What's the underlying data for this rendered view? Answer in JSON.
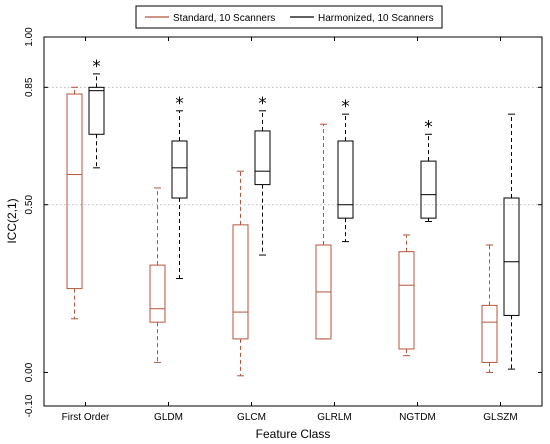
{
  "chart_data": {
    "type": "boxplot",
    "xlabel": "Feature Class",
    "ylabel": "ICC(2,1)",
    "ylim": [
      -0.1,
      1.0
    ],
    "yticks": [
      -0.1,
      0.0,
      0.5,
      0.85,
      1.0
    ],
    "ytick_labels": [
      "-0.10",
      "0.00",
      "0.50",
      "0.85",
      "1.00"
    ],
    "grid": "dotted horizontal at 0.50 and 0.85",
    "legend_position": "top-center",
    "categories": [
      "First Order",
      "GLDM",
      "GLCM",
      "GLRLM",
      "NGTDM",
      "GLSZM"
    ],
    "series": [
      {
        "name": "Standard, 10 Scanners",
        "color": "#b5553b",
        "boxes": [
          {
            "whisker_low": 0.16,
            "q1": 0.25,
            "median": 0.59,
            "q3": 0.83,
            "whisker_high": 0.85
          },
          {
            "whisker_low": 0.03,
            "q1": 0.15,
            "median": 0.19,
            "q3": 0.32,
            "whisker_high": 0.55
          },
          {
            "whisker_low": -0.01,
            "q1": 0.1,
            "median": 0.18,
            "q3": 0.44,
            "whisker_high": 0.6
          },
          {
            "whisker_low": 0.1,
            "q1": 0.1,
            "median": 0.24,
            "q3": 0.38,
            "whisker_high": 0.74
          },
          {
            "whisker_low": 0.05,
            "q1": 0.07,
            "median": 0.26,
            "q3": 0.36,
            "whisker_high": 0.41
          },
          {
            "whisker_low": 0.0,
            "q1": 0.03,
            "median": 0.15,
            "q3": 0.2,
            "whisker_high": 0.38
          }
        ]
      },
      {
        "name": "Harmonized, 10 Scanners",
        "color": "#000000",
        "boxes": [
          {
            "whisker_low": 0.61,
            "q1": 0.71,
            "median": 0.84,
            "q3": 0.85,
            "whisker_high": 0.89,
            "significant": true
          },
          {
            "whisker_low": 0.28,
            "q1": 0.52,
            "median": 0.61,
            "q3": 0.69,
            "whisker_high": 0.78,
            "significant": true
          },
          {
            "whisker_low": 0.35,
            "q1": 0.56,
            "median": 0.6,
            "q3": 0.72,
            "whisker_high": 0.78,
            "significant": true
          },
          {
            "whisker_low": 0.39,
            "q1": 0.46,
            "median": 0.5,
            "q3": 0.69,
            "whisker_high": 0.77,
            "significant": true
          },
          {
            "whisker_low": 0.45,
            "q1": 0.46,
            "median": 0.53,
            "q3": 0.63,
            "whisker_high": 0.71,
            "significant": true
          },
          {
            "whisker_low": 0.01,
            "q1": 0.17,
            "median": 0.33,
            "q3": 0.52,
            "whisker_high": 0.77,
            "significant": false
          }
        ]
      }
    ],
    "annotation_symbol": "*"
  }
}
